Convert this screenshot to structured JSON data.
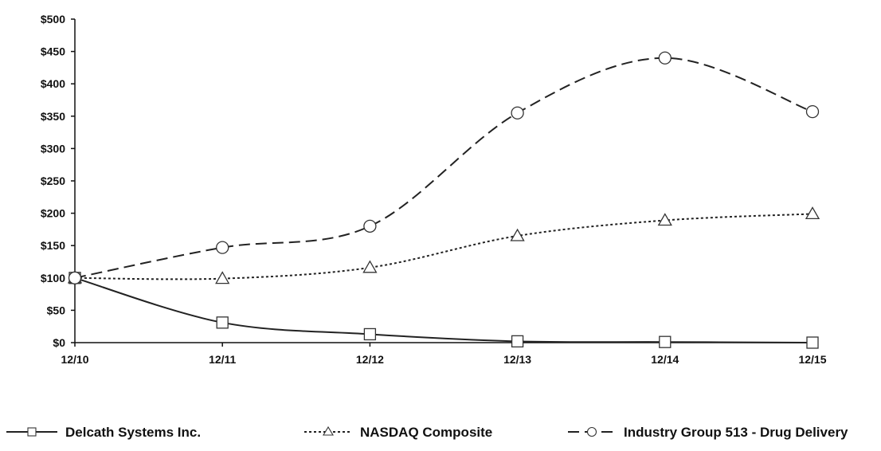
{
  "chart_data": {
    "type": "line",
    "title": "",
    "xlabel": "",
    "ylabel": "",
    "categories": [
      "12/10",
      "12/11",
      "12/12",
      "12/13",
      "12/14",
      "12/15"
    ],
    "ylim": [
      0,
      500
    ],
    "yticks": [
      "$0",
      "$50",
      "$100",
      "$150",
      "$200",
      "$250",
      "$300",
      "$350",
      "$400",
      "$450",
      "$500"
    ],
    "grid": false,
    "legend_position": "bottom",
    "series": [
      {
        "name": "Delcath Systems Inc.",
        "marker": "square",
        "line": "solid",
        "values": [
          100,
          31,
          13,
          2,
          1,
          0
        ]
      },
      {
        "name": "NASDAQ Composite",
        "marker": "triangle",
        "line": "dotted",
        "values": [
          100,
          99,
          116,
          165,
          189,
          199
        ]
      },
      {
        "name": "Industry Group 513 - Drug Delivery",
        "marker": "circle",
        "line": "dashed",
        "values": [
          100,
          147,
          180,
          355,
          440,
          357
        ]
      }
    ]
  }
}
